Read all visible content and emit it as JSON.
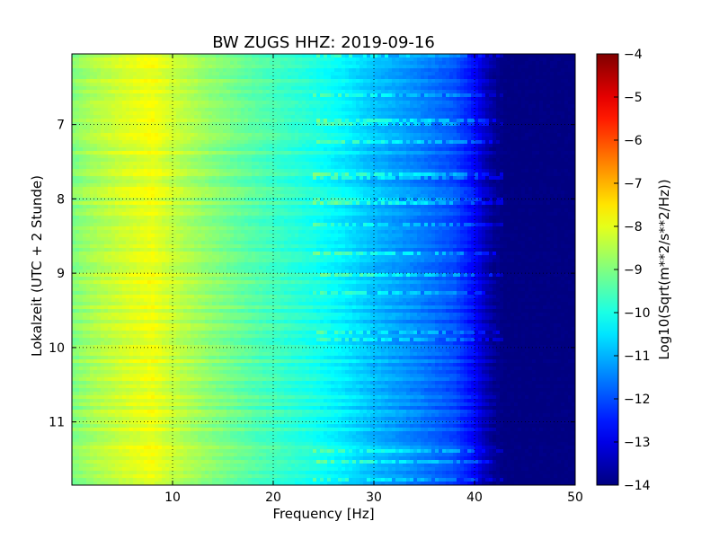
{
  "chart_data": {
    "type": "heatmap",
    "title": "BW ZUGS HHZ: 2019-09-16",
    "xlabel": "Frequency [Hz]",
    "ylabel": "Lokalzeit (UTC + 2 Stunde)",
    "colorbar_label": "Log10(Sqrt(m**2/s**2/Hz))",
    "colormap": "jet",
    "xlim": [
      0,
      50
    ],
    "ylim": [
      6.05,
      11.85
    ],
    "y_inverted": true,
    "clim": [
      -14,
      -4
    ],
    "grid": true,
    "x_ticks": [
      10,
      20,
      30,
      40,
      50
    ],
    "x_tick_labels": [
      "10",
      "20",
      "30",
      "40",
      "50"
    ],
    "y_ticks": [
      7,
      8,
      9,
      10,
      11
    ],
    "y_tick_labels": [
      "7",
      "8",
      "9",
      "10",
      "11"
    ],
    "colorbar_ticks": [
      -4,
      -5,
      -6,
      -7,
      -8,
      -9,
      -10,
      -11,
      -12,
      -13,
      -14
    ],
    "colorbar_tick_labels": [
      "−4",
      "−5",
      "−6",
      "−7",
      "−8",
      "−9",
      "−10",
      "−11",
      "−12",
      "−13",
      "−14"
    ],
    "spectrum_profile": {
      "frequency_hz": [
        0,
        2,
        5,
        8,
        10,
        14,
        18,
        20,
        24,
        27,
        30,
        34,
        38,
        40,
        41,
        42,
        43,
        50
      ],
      "log10_amplitude": [
        -9.0,
        -8.6,
        -8.2,
        -7.9,
        -8.3,
        -8.9,
        -9.4,
        -9.6,
        -10.0,
        -10.4,
        -10.9,
        -11.4,
        -12.0,
        -12.7,
        -13.4,
        -13.8,
        -14.0,
        -14.0
      ]
    }
  }
}
